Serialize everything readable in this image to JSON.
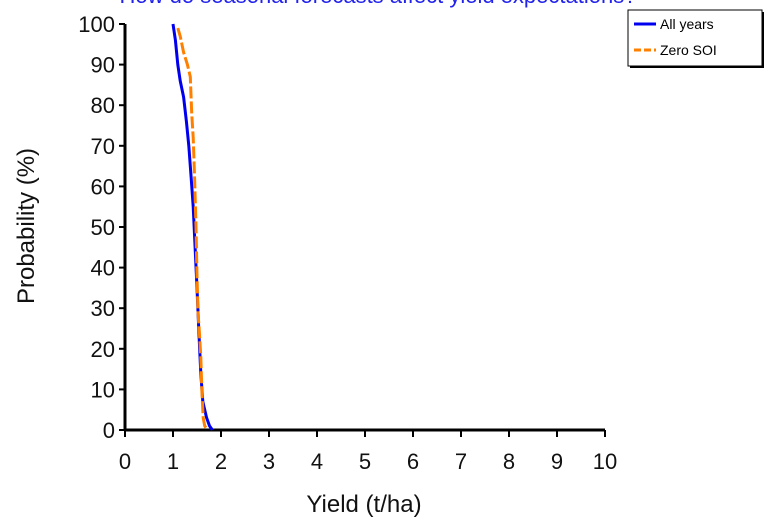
{
  "chart_data": {
    "type": "line",
    "title": "How do seasonal forecasts affect yield expectations?",
    "xlabel": "Yield (t/ha)",
    "ylabel": "Probability (%)",
    "xlim": [
      0,
      10
    ],
    "ylim": [
      0,
      100
    ],
    "x_ticks": [
      "0",
      "1",
      "2",
      "3",
      "4",
      "5",
      "6",
      "7",
      "8",
      "9",
      "10"
    ],
    "y_ticks": [
      "0",
      "10",
      "20",
      "30",
      "40",
      "50",
      "60",
      "70",
      "80",
      "90",
      "100"
    ],
    "grid": false,
    "legend_position": "top-right",
    "series": [
      {
        "name": "All years",
        "color": "#0000ee",
        "dash": "solid",
        "points": [
          [
            1.0,
            100
          ],
          [
            1.05,
            96
          ],
          [
            1.1,
            90
          ],
          [
            1.15,
            86
          ],
          [
            1.22,
            82
          ],
          [
            1.28,
            76
          ],
          [
            1.33,
            70
          ],
          [
            1.38,
            62
          ],
          [
            1.42,
            55
          ],
          [
            1.46,
            45
          ],
          [
            1.5,
            35
          ],
          [
            1.54,
            24
          ],
          [
            1.58,
            14
          ],
          [
            1.62,
            7
          ],
          [
            1.7,
            3
          ],
          [
            1.76,
            1
          ],
          [
            1.82,
            0
          ]
        ]
      },
      {
        "name": "Zero SOI",
        "color": "#ff8000",
        "dash": "dashed",
        "points": [
          [
            1.1,
            99
          ],
          [
            1.15,
            97
          ],
          [
            1.22,
            93
          ],
          [
            1.3,
            90
          ],
          [
            1.36,
            87
          ],
          [
            1.39,
            78
          ],
          [
            1.42,
            72
          ],
          [
            1.45,
            62
          ],
          [
            1.48,
            50
          ],
          [
            1.5,
            38
          ],
          [
            1.52,
            29
          ],
          [
            1.55,
            24
          ],
          [
            1.58,
            18
          ],
          [
            1.6,
            10
          ],
          [
            1.63,
            3
          ],
          [
            1.66,
            1
          ],
          [
            1.72,
            0
          ]
        ]
      }
    ]
  }
}
